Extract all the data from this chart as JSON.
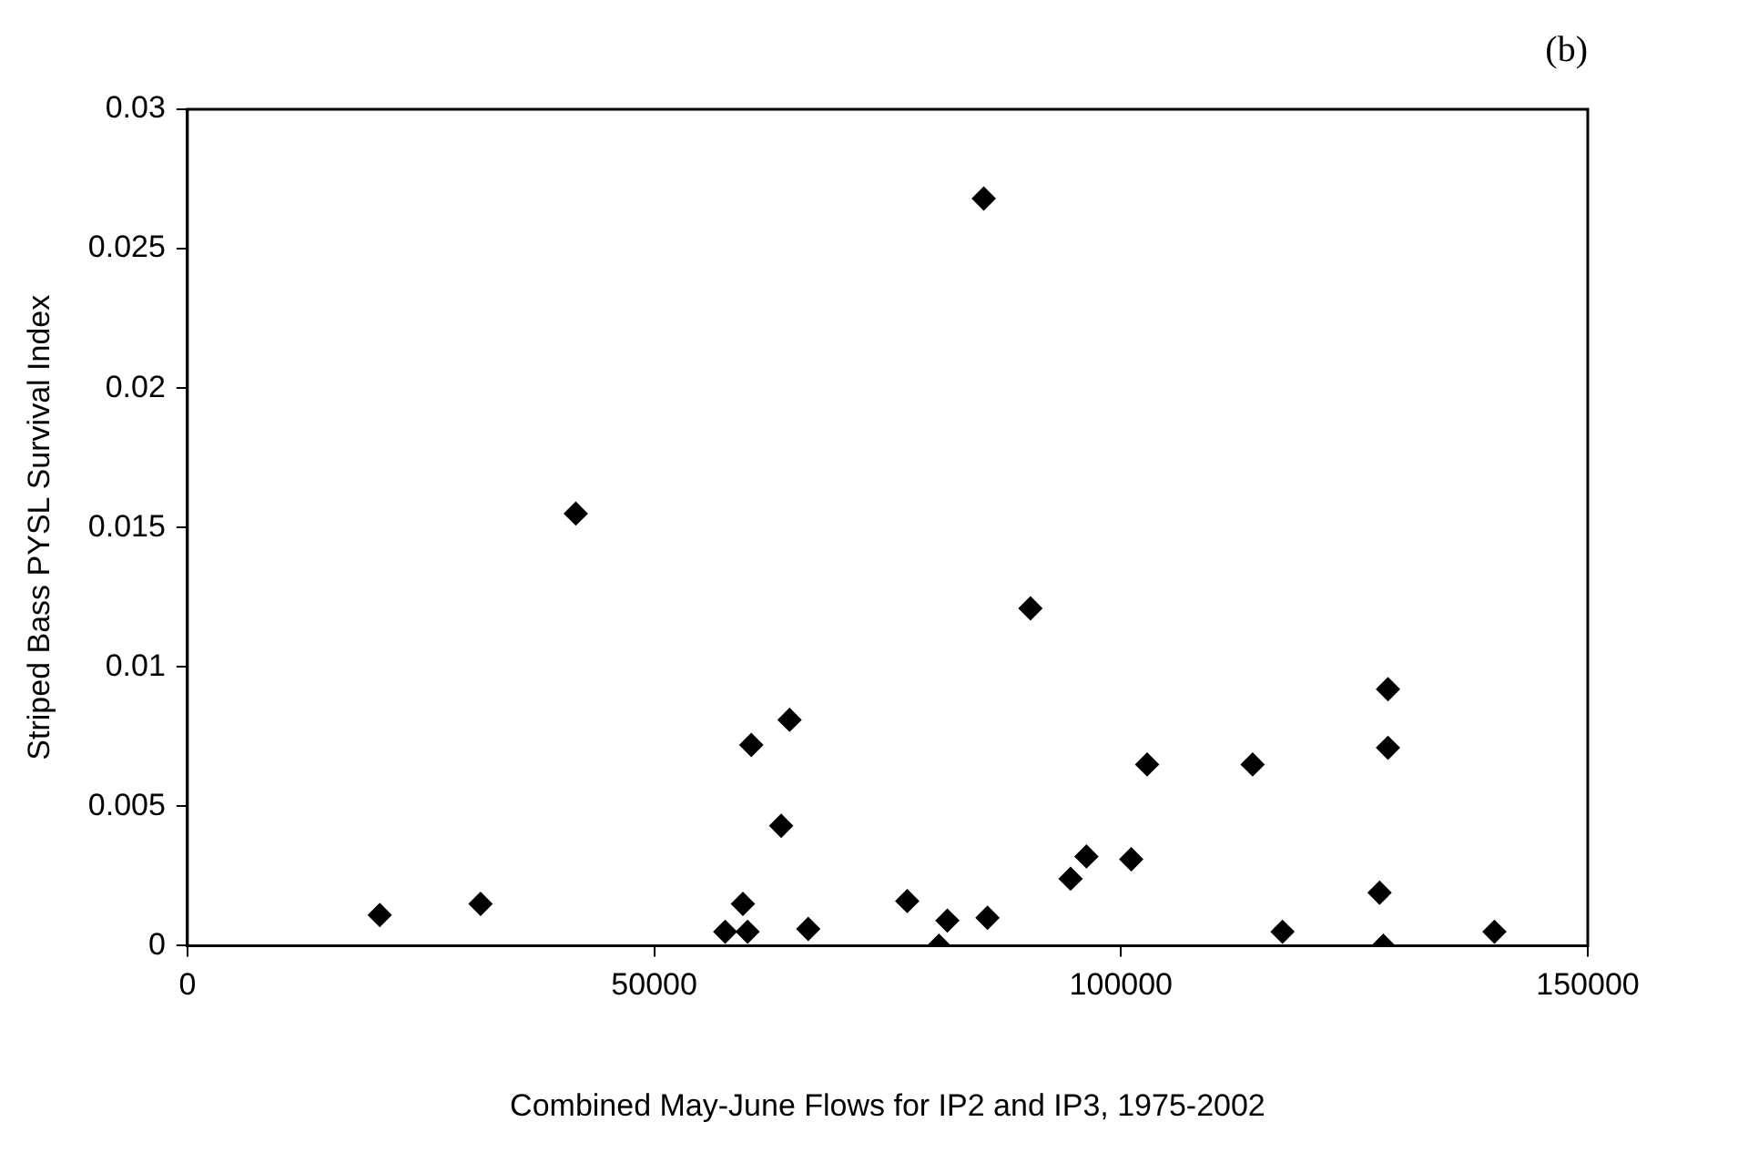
{
  "chart_data": {
    "type": "scatter",
    "title": "(b)",
    "xlabel": "Combined May-June Flows for IP2 and IP3, 1975-2002",
    "ylabel": "Striped Bass PYSL Survival Index",
    "x": [
      20600,
      31400,
      41600,
      57600,
      59500,
      60000,
      60400,
      63600,
      64500,
      66500,
      77100,
      80500,
      81400,
      85300,
      85700,
      90300,
      94600,
      96300,
      101100,
      102800,
      114100,
      117300,
      127700,
      128100,
      128600,
      128600,
      140000
    ],
    "series": [
      {
        "color": "#000000",
        "values": [
          0.0011,
          0.0015,
          0.0155,
          0.0005,
          0.0015,
          0.0005,
          0.0072,
          0.0043,
          0.0081,
          0.0006,
          0.0016,
          0,
          0.0009,
          0.0268,
          0.001,
          0.0121,
          0.0024,
          0.0032,
          0.0031,
          0.0065,
          0.0065,
          0.0005,
          0.0019,
          0,
          0.0092,
          0.0071,
          0.0005
        ]
      }
    ],
    "xlim": [
      0,
      150000
    ],
    "xticks": [
      0,
      50000,
      100000,
      150000
    ],
    "ylim": [
      0,
      0.03
    ],
    "yticks": [
      0,
      0.005,
      0.01,
      0.015,
      0.02,
      0.025,
      0.03
    ],
    "marker": "diamond",
    "grid": false,
    "legend": false
  }
}
